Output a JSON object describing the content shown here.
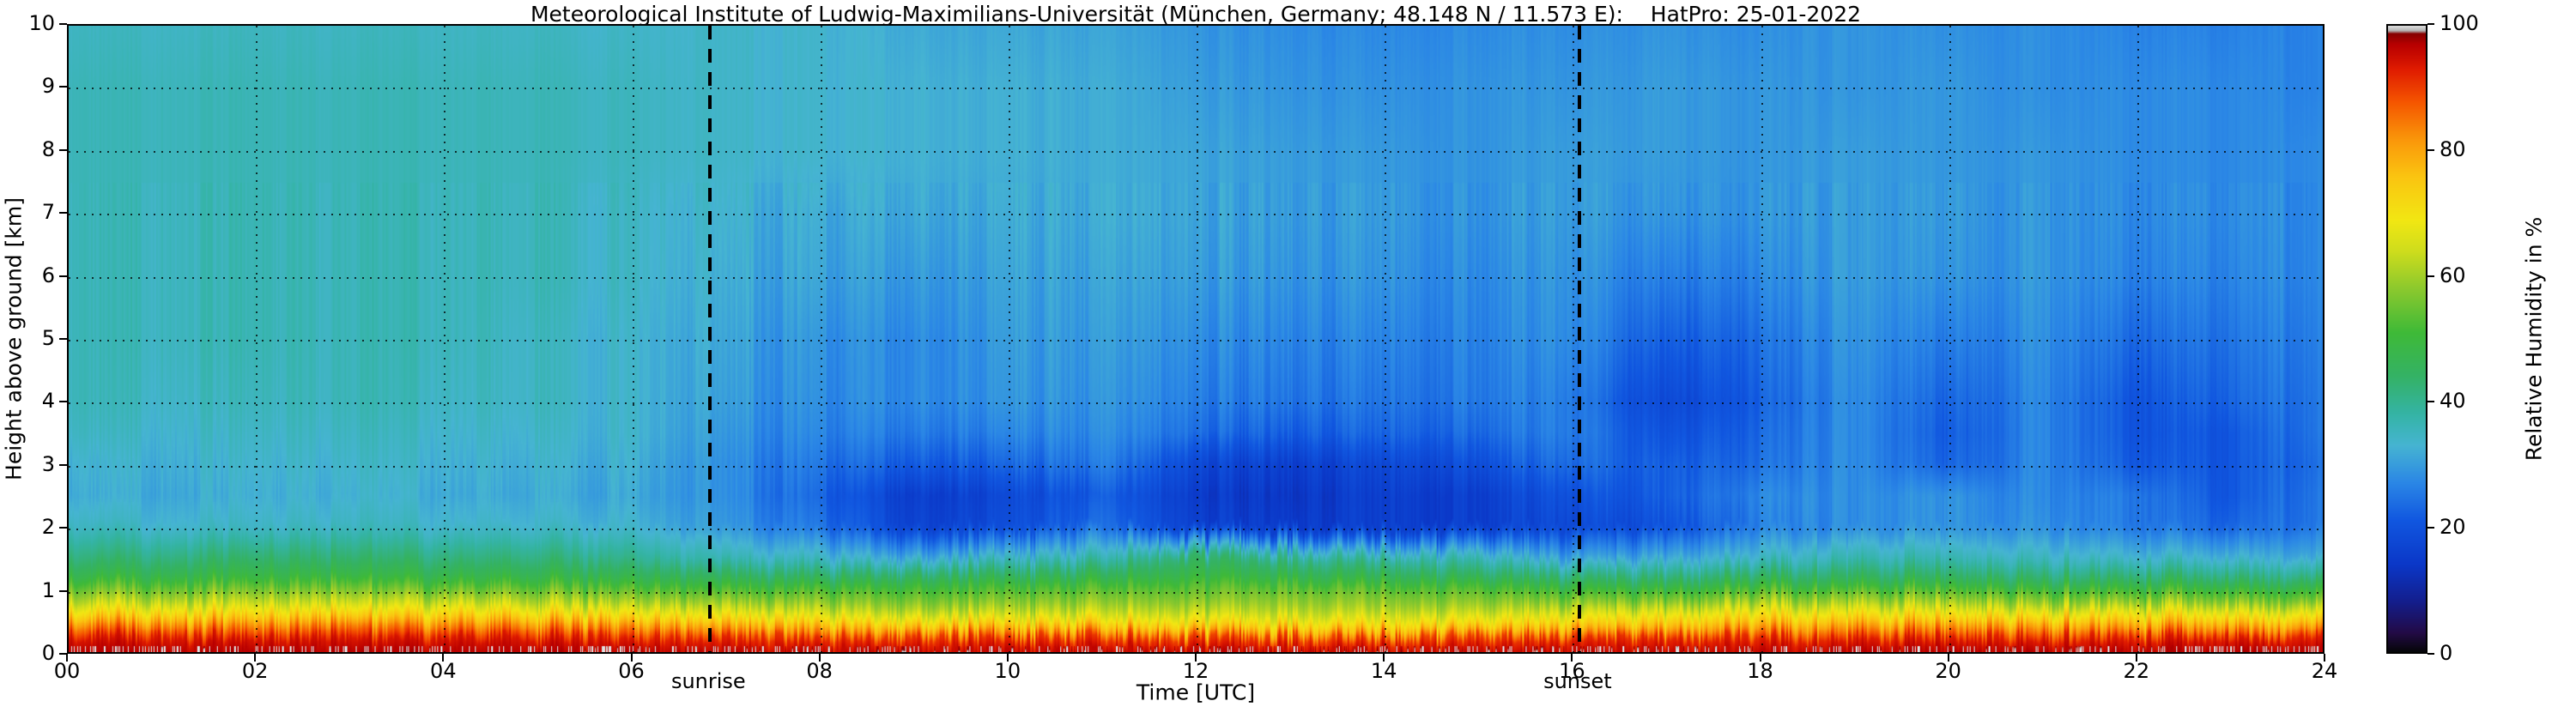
{
  "title": "Meteorological Institute of Ludwig-Maximilians-Universität (München, Germany; 48.148 N / 11.573 E):    HatPro: 25-01-2022",
  "axes": {
    "x": {
      "label": "Time [UTC]",
      "min": 0,
      "max": 24,
      "major_tick_step": 2,
      "tick_labels": [
        "00",
        "02",
        "04",
        "06",
        "08",
        "10",
        "12",
        "14",
        "16",
        "18",
        "20",
        "22",
        "24"
      ]
    },
    "y": {
      "label": "Height above ground [km]",
      "min": 0,
      "max": 10,
      "tick_labels": [
        "0",
        "1",
        "2",
        "3",
        "4",
        "5",
        "6",
        "7",
        "8",
        "9",
        "10"
      ]
    }
  },
  "annotations": {
    "sunrise": {
      "label": "sunrise",
      "time_utc": 6.82
    },
    "sunset": {
      "label": "sunset",
      "time_utc": 16.06
    }
  },
  "colorbar": {
    "label": "Relative Humidity in %",
    "min": 0,
    "max": 100,
    "tick_values": [
      0,
      20,
      40,
      60,
      80,
      100
    ],
    "tick_labels": [
      "0",
      "20",
      "40",
      "60",
      "80",
      "100"
    ],
    "colormap_stops": [
      [
        0,
        "#060608"
      ],
      [
        3,
        "#230b46"
      ],
      [
        8,
        "#141e8c"
      ],
      [
        14,
        "#0b38c8"
      ],
      [
        21,
        "#1157e0"
      ],
      [
        27,
        "#2b87e6"
      ],
      [
        33,
        "#46b4d2"
      ],
      [
        38,
        "#35b4a6"
      ],
      [
        44,
        "#34b266"
      ],
      [
        51,
        "#3fba38"
      ],
      [
        58,
        "#8cc92e"
      ],
      [
        64,
        "#cfdd1d"
      ],
      [
        69,
        "#f2e713"
      ],
      [
        76,
        "#fbc411"
      ],
      [
        82,
        "#fa960a"
      ],
      [
        88,
        "#f55400"
      ],
      [
        93,
        "#e01c00"
      ],
      [
        97,
        "#b80000"
      ],
      [
        98.7,
        "#870000"
      ],
      [
        99.2,
        "#b3b3b3"
      ],
      [
        100,
        "#e0e0e0"
      ]
    ]
  },
  "chart_data": {
    "type": "heatmap",
    "title": "Meteorological Institute of Ludwig-Maximilians-Universität (München, Germany; 48.148 N / 11.573 E):    HatPro: 25-01-2022",
    "date": "25-01-2022",
    "xlabel": "Time [UTC]",
    "ylabel": "Height above ground [km]",
    "zlabel": "Relative Humidity in %",
    "xlim": [
      0,
      24
    ],
    "ylim": [
      0,
      10
    ],
    "zlim": [
      0,
      100
    ],
    "grid": true,
    "annotations": [
      {
        "label": "sunrise",
        "x": 6.82,
        "style": "dashed-vertical-line"
      },
      {
        "label": "sunset",
        "x": 16.06,
        "style": "dashed-vertical-line"
      }
    ],
    "x_hours_utc": [
      0,
      1,
      2,
      3,
      4,
      5,
      6,
      7,
      8,
      9,
      10,
      11,
      12,
      13,
      14,
      15,
      16,
      17,
      18,
      19,
      20,
      21,
      22,
      23,
      24
    ],
    "y_height_km": [
      0,
      0.2,
      0.4,
      0.6,
      0.8,
      1.0,
      1.2,
      1.5,
      2.0,
      2.5,
      3.0,
      3.5,
      4.0,
      5.0,
      6.0,
      7.0,
      8.0,
      9.0,
      10.0
    ],
    "values_orientation": "rows follow y_height_km (ground to 10 km), columns follow x_hours_utc",
    "values_rh_percent": [
      [
        97,
        97,
        97,
        97,
        97,
        97,
        97,
        96,
        96,
        96,
        96,
        96,
        96,
        96,
        96,
        96,
        96,
        96,
        96,
        97,
        97,
        97,
        97,
        97,
        97
      ],
      [
        94,
        94,
        94,
        94,
        94,
        94,
        93,
        92,
        91,
        91,
        91,
        90,
        90,
        90,
        90,
        90,
        91,
        92,
        92,
        93,
        93,
        93,
        93,
        93,
        93
      ],
      [
        84,
        84,
        84,
        85,
        84,
        84,
        83,
        80,
        78,
        76,
        76,
        75,
        74,
        74,
        74,
        74,
        76,
        78,
        80,
        82,
        82,
        82,
        81,
        80,
        80
      ],
      [
        72,
        72,
        73,
        73,
        73,
        72,
        71,
        68,
        66,
        64,
        64,
        64,
        64,
        64,
        64,
        64,
        66,
        68,
        70,
        71,
        70,
        70,
        70,
        68,
        68
      ],
      [
        62,
        62,
        63,
        63,
        63,
        62,
        61,
        59,
        58,
        57,
        57,
        58,
        58,
        59,
        58,
        58,
        57,
        58,
        60,
        61,
        60,
        59,
        59,
        57,
        57
      ],
      [
        55,
        55,
        56,
        56,
        55,
        55,
        54,
        52,
        52,
        52,
        52,
        53,
        54,
        55,
        54,
        53,
        50,
        50,
        52,
        53,
        52,
        51,
        51,
        49,
        49
      ],
      [
        48,
        48,
        49,
        49,
        48,
        48,
        47,
        45,
        44,
        45,
        45,
        46,
        49,
        48,
        47,
        45,
        42,
        42,
        44,
        45,
        44,
        43,
        43,
        41,
        41
      ],
      [
        42,
        42,
        43,
        43,
        42,
        42,
        40,
        36,
        34,
        32,
        34,
        36,
        44,
        40,
        38,
        36,
        30,
        32,
        34,
        37,
        36,
        35,
        34,
        32,
        32
      ],
      [
        35,
        34,
        34,
        35,
        34,
        34,
        33,
        29,
        24,
        17,
        18,
        24,
        16,
        15,
        15,
        16,
        18,
        20,
        26,
        28,
        28,
        28,
        26,
        22,
        26
      ],
      [
        32,
        32,
        32,
        33,
        32,
        32,
        31,
        28,
        22,
        16,
        17,
        22,
        15,
        14,
        15,
        16,
        20,
        22,
        27,
        28,
        28,
        27,
        26,
        20,
        26
      ],
      [
        33,
        33,
        33,
        34,
        33,
        33,
        32,
        28,
        24,
        22,
        22,
        26,
        18,
        16,
        17,
        20,
        24,
        22,
        24,
        28,
        22,
        27,
        22,
        20,
        25
      ],
      [
        35,
        34,
        34,
        35,
        34,
        34,
        33,
        29,
        26,
        26,
        26,
        28,
        24,
        22,
        22,
        24,
        26,
        20,
        23,
        28,
        21,
        27,
        21,
        20,
        26
      ],
      [
        36,
        35,
        35,
        36,
        35,
        35,
        33,
        30,
        27,
        28,
        28,
        29,
        26,
        25,
        24,
        26,
        26,
        18,
        22,
        28,
        22,
        27,
        21,
        22,
        26
      ],
      [
        36,
        36,
        36,
        36,
        36,
        35,
        33,
        31,
        28,
        28,
        29,
        30,
        28,
        27,
        26,
        27,
        28,
        22,
        24,
        29,
        25,
        28,
        24,
        24,
        27
      ],
      [
        36,
        36,
        36,
        36,
        36,
        36,
        34,
        32,
        30,
        30,
        30,
        31,
        30,
        29,
        28,
        28,
        29,
        26,
        27,
        30,
        28,
        29,
        27,
        26,
        28
      ],
      [
        36,
        36,
        36,
        36,
        36,
        36,
        34,
        33,
        31,
        32,
        31,
        32,
        31,
        30,
        29,
        29,
        30,
        29,
        29,
        30,
        29,
        29,
        28,
        27,
        28
      ],
      [
        36,
        36,
        36,
        36,
        36,
        36,
        35,
        34,
        33,
        33,
        32,
        32,
        31,
        30,
        29,
        29,
        30,
        30,
        29,
        30,
        29,
        29,
        28,
        27,
        28
      ],
      [
        36,
        36,
        36,
        36,
        36,
        36,
        35,
        34,
        33,
        33,
        32,
        32,
        30,
        29,
        28,
        29,
        29,
        30,
        29,
        29,
        29,
        28,
        28,
        27,
        27
      ],
      [
        35,
        35,
        35,
        35,
        35,
        35,
        34,
        34,
        33,
        32,
        31,
        31,
        29,
        28,
        27,
        28,
        28,
        29,
        28,
        29,
        28,
        28,
        27,
        26,
        27
      ]
    ]
  }
}
